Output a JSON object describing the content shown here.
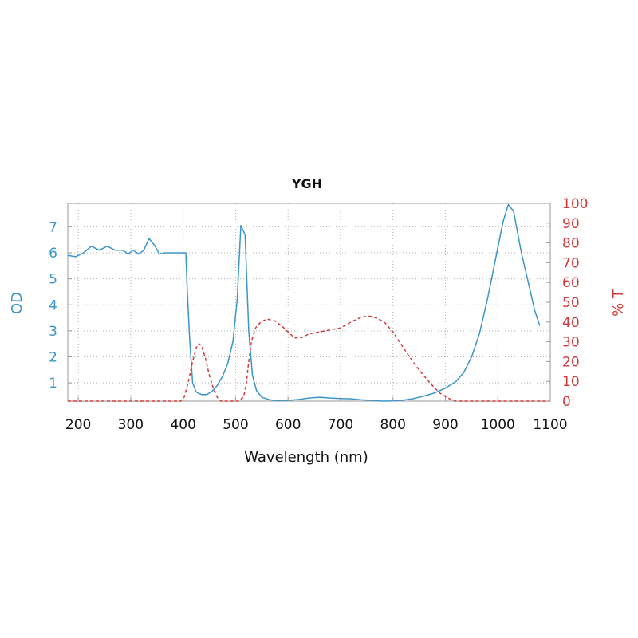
{
  "chart_data": {
    "type": "line",
    "title": "YGH",
    "xlabel": "Wavelength (nm)",
    "ylabel_left": "OD",
    "ylabel_right": "% T",
    "xlim": [
      180,
      1100
    ],
    "ylim_left": [
      0.3,
      7.9
    ],
    "ylim_right": [
      0,
      100
    ],
    "x_ticks": [
      200,
      300,
      400,
      500,
      600,
      700,
      800,
      900,
      1000,
      1100
    ],
    "y_left_ticks": [
      1,
      2,
      3,
      4,
      5,
      6,
      7
    ],
    "y_right_ticks": [
      0,
      10,
      20,
      30,
      40,
      50,
      60,
      70,
      80,
      90,
      100
    ],
    "grid": true,
    "colors": {
      "od": "#3a95c8",
      "transmission": "#d03a3a"
    },
    "series": [
      {
        "key": "od",
        "axis": "left",
        "style": "solid",
        "points": [
          [
            180,
            5.9
          ],
          [
            195,
            5.85
          ],
          [
            210,
            6.0
          ],
          [
            225,
            6.25
          ],
          [
            240,
            6.1
          ],
          [
            255,
            6.25
          ],
          [
            270,
            6.1
          ],
          [
            285,
            6.1
          ],
          [
            295,
            5.95
          ],
          [
            305,
            6.1
          ],
          [
            315,
            5.95
          ],
          [
            325,
            6.1
          ],
          [
            335,
            6.55
          ],
          [
            345,
            6.3
          ],
          [
            355,
            5.95
          ],
          [
            365,
            6.0
          ],
          [
            380,
            6.0
          ],
          [
            395,
            6.0
          ],
          [
            405,
            6.0
          ],
          [
            408,
            4.5
          ],
          [
            412,
            2.8
          ],
          [
            418,
            1.0
          ],
          [
            425,
            0.65
          ],
          [
            435,
            0.55
          ],
          [
            445,
            0.55
          ],
          [
            455,
            0.68
          ],
          [
            465,
            0.9
          ],
          [
            475,
            1.25
          ],
          [
            485,
            1.75
          ],
          [
            495,
            2.6
          ],
          [
            503,
            4.2
          ],
          [
            510,
            7.05
          ],
          [
            518,
            6.7
          ],
          [
            525,
            3.0
          ],
          [
            532,
            1.3
          ],
          [
            540,
            0.7
          ],
          [
            550,
            0.45
          ],
          [
            565,
            0.35
          ],
          [
            580,
            0.32
          ],
          [
            600,
            0.33
          ],
          [
            620,
            0.36
          ],
          [
            640,
            0.42
          ],
          [
            660,
            0.45
          ],
          [
            680,
            0.42
          ],
          [
            700,
            0.4
          ],
          [
            720,
            0.39
          ],
          [
            740,
            0.35
          ],
          [
            760,
            0.33
          ],
          [
            780,
            0.3
          ],
          [
            800,
            0.31
          ],
          [
            820,
            0.34
          ],
          [
            840,
            0.4
          ],
          [
            860,
            0.5
          ],
          [
            880,
            0.62
          ],
          [
            900,
            0.8
          ],
          [
            920,
            1.05
          ],
          [
            935,
            1.4
          ],
          [
            950,
            2.0
          ],
          [
            965,
            2.9
          ],
          [
            980,
            4.2
          ],
          [
            995,
            5.7
          ],
          [
            1010,
            7.2
          ],
          [
            1020,
            7.85
          ],
          [
            1030,
            7.6
          ],
          [
            1045,
            6.0
          ],
          [
            1060,
            4.7
          ],
          [
            1070,
            3.8
          ],
          [
            1080,
            3.2
          ]
        ]
      },
      {
        "key": "transmission",
        "axis": "right",
        "style": "dashed",
        "points": [
          [
            180,
            0
          ],
          [
            380,
            0
          ],
          [
            395,
            0
          ],
          [
            402,
            2
          ],
          [
            410,
            10
          ],
          [
            418,
            20
          ],
          [
            425,
            27
          ],
          [
            430,
            29
          ],
          [
            435,
            28
          ],
          [
            442,
            22
          ],
          [
            450,
            13
          ],
          [
            458,
            6
          ],
          [
            465,
            2
          ],
          [
            472,
            0
          ],
          [
            505,
            0
          ],
          [
            515,
            2
          ],
          [
            520,
            8
          ],
          [
            525,
            20
          ],
          [
            530,
            30
          ],
          [
            538,
            37
          ],
          [
            548,
            40
          ],
          [
            560,
            41.5
          ],
          [
            575,
            40.5
          ],
          [
            588,
            38
          ],
          [
            600,
            35
          ],
          [
            612,
            32
          ],
          [
            625,
            32
          ],
          [
            640,
            34
          ],
          [
            660,
            35
          ],
          [
            680,
            36
          ],
          [
            700,
            37
          ],
          [
            720,
            40
          ],
          [
            740,
            42.5
          ],
          [
            755,
            43
          ],
          [
            770,
            42
          ],
          [
            785,
            39.5
          ],
          [
            800,
            35
          ],
          [
            815,
            29
          ],
          [
            830,
            23
          ],
          [
            845,
            17.5
          ],
          [
            860,
            12.5
          ],
          [
            875,
            8
          ],
          [
            890,
            4
          ],
          [
            905,
            1.5
          ],
          [
            920,
            0
          ],
          [
            1100,
            0
          ]
        ]
      }
    ]
  }
}
